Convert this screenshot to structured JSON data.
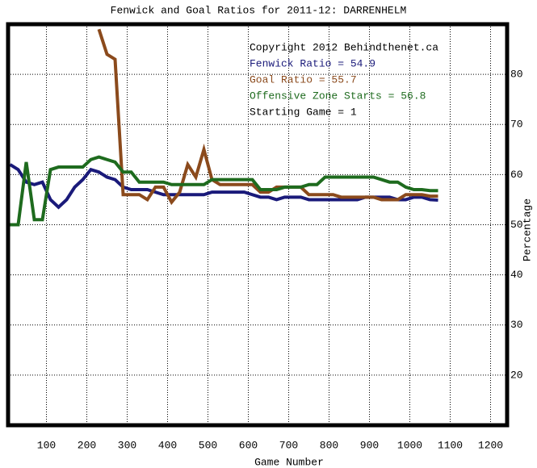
{
  "chart_data": {
    "type": "line",
    "title": "Fenwick and Goal Ratios for 2011-12: DARRENHELM",
    "x_label": "Game Number",
    "y_label": "Percentage",
    "annotations": [
      {
        "text": "Copyright 2012 Behindthenet.ca",
        "color": "#000000"
      },
      {
        "text": "Fenwick Ratio = 54.9",
        "color": "#1a1a7a"
      },
      {
        "text": "Goal Ratio = 55.7",
        "color": "#8b4a1c"
      },
      {
        "text": "Offensive Zone Starts = 56.8",
        "color": "#1e6b1e"
      },
      {
        "text": "Starting Game = 1",
        "color": "#000000"
      }
    ],
    "xlim": [
      5,
      1241
    ],
    "ylim": [
      10,
      90
    ],
    "xticks": [
      100,
      200,
      300,
      400,
      500,
      600,
      700,
      800,
      900,
      1000,
      1100,
      1200
    ],
    "yticks": [
      20,
      30,
      40,
      50,
      60,
      70,
      80
    ],
    "grid": true,
    "x": [
      10,
      30,
      50,
      70,
      90,
      110,
      130,
      150,
      170,
      190,
      210,
      230,
      250,
      270,
      290,
      310,
      330,
      350,
      370,
      390,
      410,
      430,
      450,
      470,
      490,
      510,
      530,
      550,
      570,
      590,
      610,
      630,
      650,
      670,
      690,
      710,
      730,
      750,
      770,
      790,
      810,
      830,
      850,
      870,
      890,
      910,
      930,
      950,
      970,
      990,
      1010,
      1030,
      1050,
      1070
    ],
    "series": [
      {
        "name": "Fenwick Ratio",
        "color": "#1a1a7a",
        "values": [
          62,
          61,
          58.5,
          58,
          58.5,
          55,
          53.5,
          55,
          57.5,
          59,
          61,
          60.5,
          59.5,
          59,
          57.5,
          57,
          57,
          57,
          56.5,
          56,
          56,
          56,
          56,
          56,
          56,
          56.5,
          56.5,
          56.5,
          56.5,
          56.5,
          56,
          55.5,
          55.5,
          55,
          55.5,
          55.5,
          55.5,
          55,
          55,
          55,
          55,
          55,
          55,
          55,
          55.5,
          55.5,
          55.5,
          55.5,
          55,
          55,
          55.5,
          55.5,
          55,
          54.9
        ]
      },
      {
        "name": "Goal Ratio",
        "color": "#8b4a1c",
        "values": [
          null,
          null,
          null,
          null,
          null,
          null,
          null,
          null,
          null,
          null,
          null,
          89,
          84,
          83,
          56,
          56,
          56,
          55,
          57.5,
          57.5,
          54.5,
          56.5,
          62,
          59.5,
          65,
          59,
          58,
          58,
          58,
          58,
          58,
          56.5,
          56.5,
          57.5,
          57.5,
          57.5,
          57.5,
          56,
          56,
          56,
          56,
          55.5,
          55.5,
          55.5,
          55.5,
          55.5,
          55,
          55,
          55,
          56,
          56,
          56,
          55.7,
          55.7
        ]
      },
      {
        "name": "Offensive Zone Starts",
        "color": "#1e6b1e",
        "values": [
          50,
          50,
          62.5,
          51,
          51,
          61,
          61.5,
          61.5,
          61.5,
          61.5,
          63,
          63.5,
          63,
          62.5,
          60.5,
          60.5,
          58.5,
          58.5,
          58.5,
          58.5,
          58,
          58,
          58,
          58,
          58,
          59,
          59,
          59,
          59,
          59,
          59,
          57,
          57,
          57,
          57.5,
          57.5,
          57.5,
          58,
          58,
          59.5,
          59.5,
          59.5,
          59.5,
          59.5,
          59.5,
          59.5,
          59,
          58.5,
          58.5,
          57.5,
          57,
          57,
          56.8,
          56.8
        ]
      }
    ]
  }
}
